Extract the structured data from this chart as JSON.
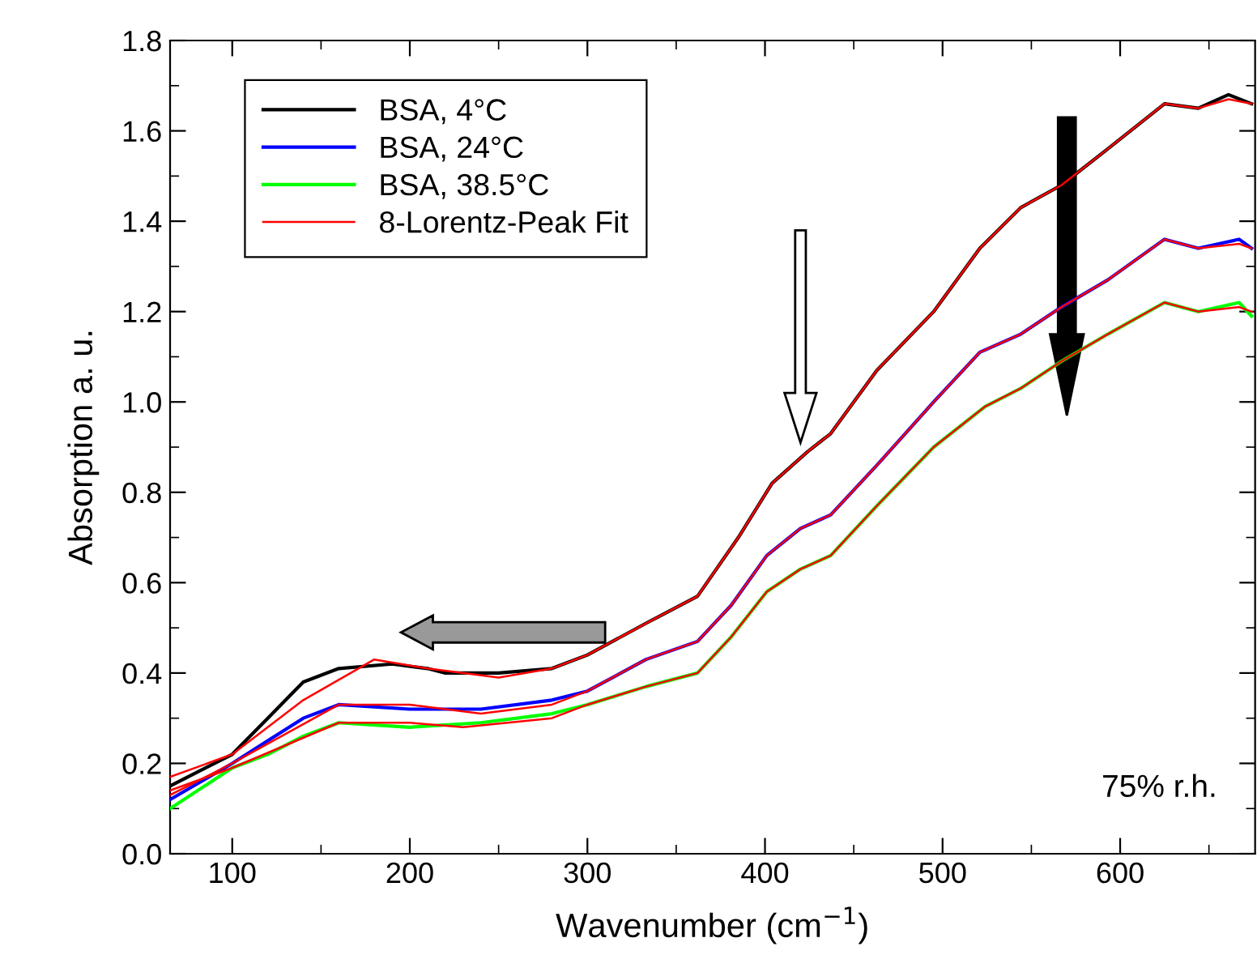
{
  "chart_data": {
    "type": "line",
    "xlabel": "Wavenumber (cm$^{−1}$)",
    "ylabel": "Absorption a. u.",
    "xlim": [
      65,
      676
    ],
    "ylim": [
      0,
      1.8
    ],
    "xticks": [
      100,
      {
        "value": 150,
        "label": null
      },
      200,
      {
        "value": 250,
        "label": null
      },
      300,
      {
        "value": 350,
        "label": null
      },
      400,
      {
        "value": 450,
        "label": null
      },
      500,
      {
        "value": 550,
        "label": null
      },
      600,
      {
        "value": 650,
        "label": null
      }
    ],
    "yticks": [
      {
        "value": 0,
        "label": "0.0"
      },
      {
        "value": 0.1,
        "label": null
      },
      0.2,
      {
        "value": 0.3,
        "label": null
      },
      0.4,
      {
        "value": 0.5,
        "label": null
      },
      0.6,
      {
        "value": 0.7,
        "label": null
      },
      0.8,
      {
        "value": 0.9,
        "label": null
      },
      {
        "value": 1.0,
        "label": "1.0"
      },
      {
        "value": 1.1,
        "label": null
      },
      1.2,
      {
        "value": 1.3,
        "label": null
      },
      1.4,
      {
        "value": 1.5,
        "label": null
      },
      1.6,
      {
        "value": 1.7,
        "label": null
      },
      1.8
    ],
    "grid": false,
    "legend": "top left",
    "marker": "none",
    "line_style": "solid",
    "annotations": [
      "75% r.h."
    ],
    "series": [
      {
        "name": "BSA, 4°C",
        "color": "#000000",
        "x": [
          65,
          100,
          120,
          140,
          160,
          190,
          210,
          220,
          250,
          280,
          300,
          333,
          362,
          385,
          404,
          424,
          437,
          463,
          495,
          521,
          544,
          567,
          593,
          625,
          644,
          661,
          674
        ],
        "values": [
          0.15,
          0.22,
          0.3,
          0.38,
          0.41,
          0.42,
          0.41,
          0.4,
          0.4,
          0.41,
          0.44,
          0.51,
          0.57,
          0.7,
          0.82,
          0.89,
          0.93,
          1.07,
          1.2,
          1.34,
          1.43,
          1.48,
          1.56,
          1.66,
          1.65,
          1.68,
          1.66
        ]
      },
      {
        "name": "BSA, 24°C",
        "color": "#0000ff",
        "x": [
          65,
          100,
          120,
          140,
          160,
          200,
          240,
          280,
          300,
          333,
          362,
          381,
          401,
          420,
          437,
          463,
          495,
          521,
          544,
          567,
          593,
          625,
          644,
          667,
          674
        ],
        "values": [
          0.12,
          0.2,
          0.25,
          0.3,
          0.33,
          0.32,
          0.32,
          0.34,
          0.36,
          0.43,
          0.47,
          0.55,
          0.66,
          0.72,
          0.75,
          0.86,
          1.0,
          1.11,
          1.15,
          1.21,
          1.27,
          1.36,
          1.34,
          1.36,
          1.34
        ]
      },
      {
        "name": "BSA, 38.5°C",
        "color": "#00ff00",
        "x": [
          65,
          100,
          120,
          140,
          160,
          200,
          240,
          280,
          300,
          333,
          362,
          381,
          401,
          420,
          437,
          463,
          495,
          524,
          544,
          567,
          593,
          625,
          644,
          667,
          674
        ],
        "values": [
          0.1,
          0.19,
          0.22,
          0.26,
          0.29,
          0.28,
          0.29,
          0.31,
          0.33,
          0.37,
          0.4,
          0.48,
          0.58,
          0.63,
          0.66,
          0.77,
          0.9,
          0.99,
          1.03,
          1.09,
          1.15,
          1.22,
          1.2,
          1.22,
          1.19
        ]
      },
      {
        "name": "8-Lorentz-Peak Fit",
        "color": "#ff0000",
        "x": [
          65,
          100,
          140,
          180,
          210,
          250,
          280,
          300,
          333,
          362,
          385,
          404,
          424,
          437,
          463,
          495,
          521,
          544,
          567,
          593,
          625,
          644,
          661,
          674
        ],
        "values": [
          0.17,
          0.22,
          0.34,
          0.43,
          0.41,
          0.39,
          0.41,
          0.44,
          0.51,
          0.57,
          0.7,
          0.82,
          0.89,
          0.93,
          1.07,
          1.2,
          1.34,
          1.43,
          1.48,
          1.56,
          1.66,
          1.65,
          1.67,
          1.66
        ]
      },
      {
        "color": "#ff0000",
        "x": [
          65,
          100,
          160,
          200,
          240,
          280,
          300,
          333,
          362,
          381,
          401,
          420,
          437,
          463,
          495,
          521,
          544,
          567,
          593,
          625,
          644,
          667,
          674
        ],
        "values": [
          0.13,
          0.2,
          0.33,
          0.33,
          0.31,
          0.33,
          0.36,
          0.43,
          0.47,
          0.55,
          0.66,
          0.72,
          0.75,
          0.86,
          1.0,
          1.11,
          1.15,
          1.21,
          1.27,
          1.36,
          1.34,
          1.35,
          1.34
        ]
      },
      {
        "color": "#ff0000",
        "x": [
          65,
          100,
          160,
          200,
          230,
          280,
          300,
          333,
          362,
          381,
          401,
          420,
          437,
          463,
          495,
          524,
          544,
          567,
          593,
          625,
          644,
          667,
          674
        ],
        "values": [
          0.14,
          0.19,
          0.29,
          0.29,
          0.28,
          0.3,
          0.33,
          0.37,
          0.4,
          0.48,
          0.58,
          0.63,
          0.66,
          0.77,
          0.9,
          0.99,
          1.03,
          1.09,
          1.15,
          1.22,
          1.2,
          1.21,
          1.2
        ]
      }
    ]
  }
}
